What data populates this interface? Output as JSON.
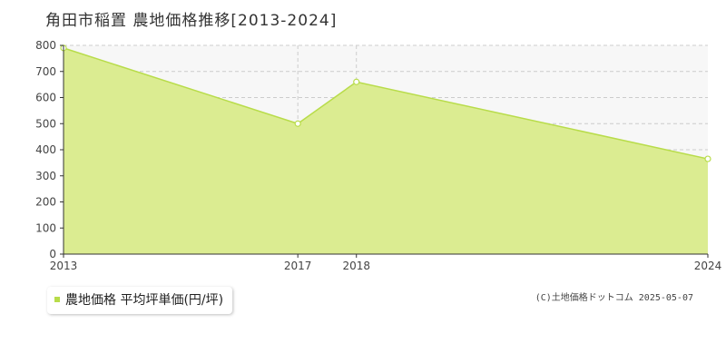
{
  "title": "角田市稲置 農地価格推移[2013-2024]",
  "copyright": "(C)土地価格ドットコム 2025-05-07",
  "colors": {
    "fill": "#dbec91",
    "line": "#b8dc4a",
    "plot_background": "#f7f7f7",
    "grid": "#cccccc"
  },
  "chart_data": {
    "type": "area",
    "x": [
      "2013",
      "2017",
      "2018",
      "2024"
    ],
    "series": [
      {
        "name": "農地価格 平均坪単価(円/坪)",
        "values": [
          790,
          500,
          660,
          365
        ]
      }
    ],
    "xlabel": "",
    "ylabel": "",
    "ylim": [
      0,
      800
    ],
    "yticks": [
      "0",
      "100",
      "200",
      "300",
      "400",
      "500",
      "600",
      "700",
      "800"
    ],
    "xticks": [
      "2013",
      "2017",
      "2018",
      "2024"
    ],
    "grid": true,
    "legend_position": "bottom-left"
  }
}
